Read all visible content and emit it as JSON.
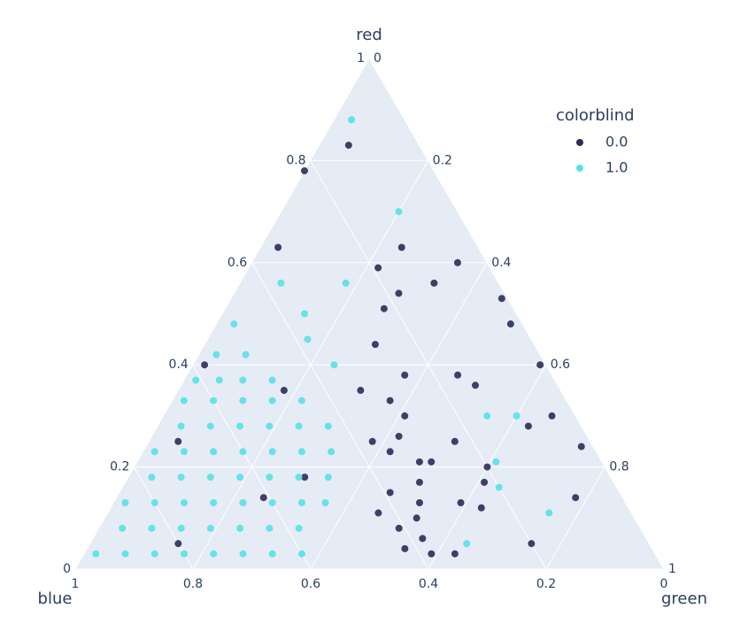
{
  "chart_data": {
    "type": "ternary_scatter",
    "axis_titles": {
      "a": "red",
      "b": "blue",
      "c": "green"
    },
    "aticks": [
      0,
      0.2,
      0.4,
      0.6,
      0.8,
      1
    ],
    "bticks": [
      0,
      0.2,
      0.4,
      0.6,
      0.8,
      1
    ],
    "cticks": [
      0,
      0.2,
      0.4,
      0.6,
      0.8,
      1
    ],
    "grid": true,
    "legend_title": "colorblind",
    "legend_position": "top-right",
    "series": [
      {
        "name": "0.0",
        "color": "#2e2b57",
        "red": [
          0.83,
          0.78,
          0.63,
          0.63,
          0.59,
          0.6,
          0.56,
          0.54,
          0.53,
          0.51,
          0.48,
          0.44,
          0.4,
          0.38,
          0.38,
          0.36,
          0.3,
          0.28,
          0.25,
          0.24,
          0.2,
          0.17,
          0.14,
          0.13,
          0.12,
          0.05,
          0.03,
          0.21,
          0.3,
          0.21,
          0.13,
          0.08,
          0.33,
          0.06,
          0.03,
          0.26,
          0.17,
          0.1,
          0.35,
          0.23,
          0.15,
          0.04,
          0.4,
          0.35,
          0.25,
          0.14,
          0.25,
          0.11,
          0.05,
          0.18
        ],
        "blue": [
          0.12,
          0.22,
          0.34,
          0.13,
          0.19,
          0.05,
          0.11,
          0.18,
          0.01,
          0.22,
          0.02,
          0.27,
          0.01,
          0.25,
          0.16,
          0.14,
          0.04,
          0.09,
          0.23,
          0.02,
          0.2,
          0.22,
          0.08,
          0.28,
          0.25,
          0.2,
          0.34,
          0.29,
          0.29,
          0.31,
          0.35,
          0.41,
          0.3,
          0.38,
          0.38,
          0.32,
          0.33,
          0.37,
          0.34,
          0.35,
          0.39,
          0.42,
          0.58,
          0.47,
          0.7,
          0.61,
          0.37,
          0.43,
          0.8,
          0.52
        ],
        "green": [
          0.05,
          0.0,
          0.03,
          0.24,
          0.22,
          0.35,
          0.33,
          0.28,
          0.46,
          0.27,
          0.5,
          0.29,
          0.59,
          0.37,
          0.46,
          0.5,
          0.66,
          0.63,
          0.52,
          0.74,
          0.6,
          0.61,
          0.78,
          0.59,
          0.63,
          0.75,
          0.63,
          0.5,
          0.41,
          0.48,
          0.52,
          0.51,
          0.37,
          0.56,
          0.59,
          0.42,
          0.5,
          0.53,
          0.31,
          0.42,
          0.46,
          0.54,
          0.02,
          0.18,
          0.05,
          0.25,
          0.38,
          0.46,
          0.15,
          0.3
        ]
      },
      {
        "name": "1.0",
        "color": "#59e1e3",
        "red": [
          0.03,
          0.03,
          0.03,
          0.03,
          0.03,
          0.03,
          0.03,
          0.03,
          0.08,
          0.08,
          0.08,
          0.08,
          0.08,
          0.08,
          0.08,
          0.13,
          0.13,
          0.13,
          0.13,
          0.13,
          0.13,
          0.13,
          0.13,
          0.18,
          0.18,
          0.18,
          0.18,
          0.18,
          0.18,
          0.18,
          0.23,
          0.23,
          0.23,
          0.23,
          0.23,
          0.23,
          0.23,
          0.28,
          0.28,
          0.28,
          0.28,
          0.28,
          0.28,
          0.33,
          0.33,
          0.33,
          0.33,
          0.33,
          0.37,
          0.37,
          0.37,
          0.37,
          0.42,
          0.42,
          0.88,
          0.7,
          0.56,
          0.56,
          0.5,
          0.48,
          0.45,
          0.4,
          0.3,
          0.3,
          0.21,
          0.16,
          0.11,
          0.05
        ],
        "blue": [
          0.95,
          0.9,
          0.85,
          0.8,
          0.75,
          0.7,
          0.65,
          0.6,
          0.88,
          0.83,
          0.78,
          0.73,
          0.68,
          0.63,
          0.58,
          0.85,
          0.8,
          0.75,
          0.7,
          0.65,
          0.6,
          0.55,
          0.51,
          0.78,
          0.73,
          0.68,
          0.63,
          0.58,
          0.53,
          0.48,
          0.75,
          0.7,
          0.65,
          0.6,
          0.55,
          0.5,
          0.45,
          0.68,
          0.63,
          0.58,
          0.53,
          0.48,
          0.43,
          0.65,
          0.6,
          0.55,
          0.5,
          0.45,
          0.61,
          0.57,
          0.53,
          0.48,
          0.55,
          0.5,
          0.09,
          0.1,
          0.26,
          0.37,
          0.36,
          0.49,
          0.38,
          0.36,
          0.15,
          0.1,
          0.18,
          0.2,
          0.14,
          0.31
        ],
        "green": [
          0.02,
          0.07,
          0.12,
          0.17,
          0.22,
          0.27,
          0.32,
          0.37,
          0.04,
          0.09,
          0.14,
          0.19,
          0.24,
          0.29,
          0.34,
          0.02,
          0.07,
          0.12,
          0.17,
          0.22,
          0.27,
          0.32,
          0.36,
          0.04,
          0.09,
          0.14,
          0.19,
          0.24,
          0.29,
          0.34,
          0.02,
          0.07,
          0.12,
          0.17,
          0.22,
          0.27,
          0.32,
          0.04,
          0.09,
          0.14,
          0.19,
          0.24,
          0.29,
          0.02,
          0.07,
          0.12,
          0.17,
          0.22,
          0.02,
          0.06,
          0.1,
          0.15,
          0.03,
          0.08,
          0.03,
          0.2,
          0.18,
          0.07,
          0.14,
          0.03,
          0.17,
          0.24,
          0.55,
          0.6,
          0.61,
          0.64,
          0.75,
          0.64
        ]
      }
    ]
  }
}
